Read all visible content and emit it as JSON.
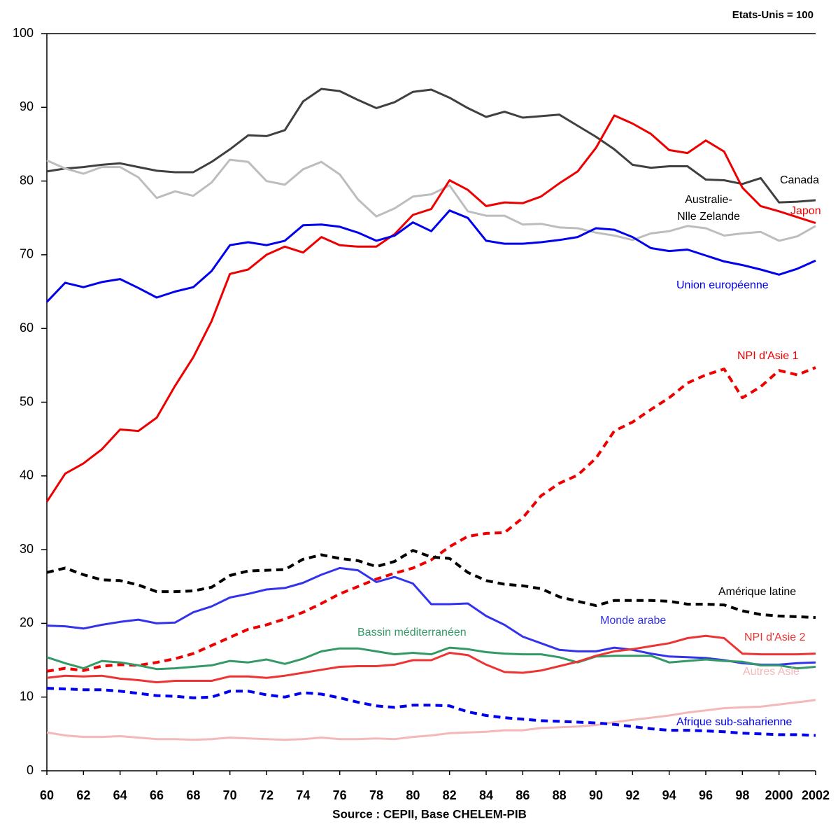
{
  "chart_data": {
    "type": "line",
    "title": "Etats-Unis = 100",
    "source": "Source : CEPII, Base CHELEM-PIB",
    "x": [
      1960,
      1961,
      1962,
      1963,
      1964,
      1965,
      1966,
      1967,
      1968,
      1969,
      1970,
      1971,
      1972,
      1973,
      1974,
      1975,
      1976,
      1977,
      1978,
      1979,
      1980,
      1981,
      1982,
      1983,
      1984,
      1985,
      1986,
      1987,
      1988,
      1989,
      1990,
      1991,
      1992,
      1993,
      1994,
      1995,
      1996,
      1997,
      1998,
      1999,
      2000,
      2001,
      2002
    ],
    "xlim": [
      1960,
      2002
    ],
    "xticks": [
      {
        "value": 1960,
        "label": "60"
      },
      {
        "value": 1962,
        "label": "62"
      },
      {
        "value": 1964,
        "label": "64"
      },
      {
        "value": 1966,
        "label": "66"
      },
      {
        "value": 1968,
        "label": "68"
      },
      {
        "value": 1970,
        "label": "70"
      },
      {
        "value": 1972,
        "label": "72"
      },
      {
        "value": 1974,
        "label": "74"
      },
      {
        "value": 1976,
        "label": "76"
      },
      {
        "value": 1978,
        "label": "78"
      },
      {
        "value": 1980,
        "label": "80"
      },
      {
        "value": 1982,
        "label": "82"
      },
      {
        "value": 1984,
        "label": "84"
      },
      {
        "value": 1986,
        "label": "86"
      },
      {
        "value": 1988,
        "label": "88"
      },
      {
        "value": 1990,
        "label": "90"
      },
      {
        "value": 1992,
        "label": "92"
      },
      {
        "value": 1994,
        "label": "94"
      },
      {
        "value": 1996,
        "label": "96"
      },
      {
        "value": 1998,
        "label": "98"
      },
      2000,
      2002
    ],
    "ylim": [
      0,
      100
    ],
    "yticks": [
      0,
      10,
      20,
      30,
      40,
      50,
      60,
      70,
      80,
      90,
      100
    ],
    "series": [
      {
        "name": "Canada",
        "color": "#404040",
        "style": "solid",
        "values": [
          81.3,
          81.7,
          81.9,
          82.2,
          82.4,
          81.9,
          81.4,
          81.2,
          81.2,
          82.6,
          84.3,
          86.2,
          86.1,
          86.9,
          90.8,
          92.5,
          92.2,
          91,
          89.9,
          90.7,
          92.1,
          92.4,
          91.3,
          89.9,
          88.7,
          89.4,
          88.6,
          88.8,
          89,
          87.5,
          86,
          84.3,
          82.2,
          81.8,
          82,
          82,
          80.2,
          80.1,
          79.6,
          80.4,
          77.1,
          77.2,
          77.4
        ]
      },
      {
        "name": "Australie-\nNlle Zelande",
        "color": "#bdbdbd",
        "style": "solid",
        "values": [
          82.8,
          81.7,
          81,
          81.9,
          81.9,
          80.5,
          77.7,
          78.6,
          78,
          79.8,
          82.9,
          82.6,
          80,
          79.5,
          81.6,
          82.6,
          80.9,
          77.5,
          75.2,
          76.3,
          77.9,
          78.2,
          79.4,
          75.9,
          75.3,
          75.3,
          74.1,
          74.2,
          73.7,
          73.6,
          73,
          72.6,
          72,
          72.9,
          73.2,
          73.9,
          73.6,
          72.6,
          72.9,
          73.1,
          71.9,
          72.5,
          73.9
        ]
      },
      {
        "name": "Japon",
        "color": "#ee0000",
        "style": "solid",
        "values": [
          36.5,
          40.3,
          41.7,
          43.6,
          46.3,
          46.1,
          47.9,
          52.2,
          56.1,
          61,
          67.4,
          68,
          70,
          71.1,
          70.3,
          72.4,
          71.3,
          71.1,
          71.1,
          72.8,
          75.4,
          76.2,
          80.1,
          78.8,
          76.6,
          77.1,
          77,
          77.9,
          79.7,
          81.3,
          84.5,
          88.9,
          87.8,
          86.4,
          84.2,
          83.8,
          85.5,
          84,
          79.1,
          76.6,
          75.9,
          75.1,
          74.3
        ]
      },
      {
        "name": "Union européenne",
        "color": "#0000ee",
        "style": "solid",
        "values": [
          63.6,
          66.2,
          65.6,
          66.3,
          66.7,
          65.5,
          64.2,
          65,
          65.6,
          67.8,
          71.3,
          71.7,
          71.3,
          71.9,
          74,
          74.1,
          73.8,
          73,
          71.9,
          72.6,
          74.4,
          73.2,
          76,
          75,
          71.9,
          71.5,
          71.5,
          71.7,
          72,
          72.4,
          73.6,
          73.4,
          72.4,
          70.9,
          70.5,
          70.7,
          69.9,
          69.1,
          68.6,
          68,
          67.3,
          68.1,
          69.2
        ]
      },
      {
        "name": "NPI d'Asie 1",
        "color": "#ee0000",
        "style": "dashed",
        "values": [
          13.5,
          13.9,
          13.6,
          14.2,
          14.4,
          14.3,
          14.7,
          15.2,
          15.9,
          17,
          18.1,
          19.2,
          19.8,
          20.6,
          21.5,
          22.7,
          24,
          25,
          26,
          26.8,
          27.5,
          28.6,
          30.4,
          31.8,
          32.2,
          32.3,
          34.3,
          37.3,
          39,
          40.1,
          42.4,
          46.1,
          47.3,
          49,
          50.6,
          52.6,
          53.7,
          54.5,
          50.6,
          52.1,
          54.3,
          53.7,
          54.7
        ]
      },
      {
        "name": "Amérique latine",
        "color": "#000000",
        "style": "dashed",
        "values": [
          26.9,
          27.5,
          26.6,
          25.9,
          25.8,
          25.2,
          24.3,
          24.3,
          24.4,
          24.9,
          26.5,
          27.1,
          27.2,
          27.3,
          28.7,
          29.3,
          28.8,
          28.5,
          27.7,
          28.4,
          29.9,
          29,
          28.8,
          26.9,
          25.8,
          25.3,
          25.1,
          24.7,
          23.6,
          23,
          22.4,
          23.1,
          23.1,
          23.1,
          23,
          22.6,
          22.6,
          22.5,
          21.7,
          21.2,
          21,
          20.9,
          20.8
        ]
      },
      {
        "name": "Monde arabe",
        "color": "#3333ee",
        "style": "solid",
        "values": [
          19.7,
          19.6,
          19.3,
          19.8,
          20.2,
          20.5,
          20,
          20.1,
          21.5,
          22.3,
          23.5,
          24,
          24.6,
          24.8,
          25.5,
          26.6,
          27.5,
          27.2,
          25.6,
          26.3,
          25.4,
          22.6,
          22.6,
          22.7,
          21,
          19.8,
          18.2,
          17.3,
          16.4,
          16.2,
          16.2,
          16.7,
          16.4,
          15.9,
          15.5,
          15.4,
          15.3,
          15,
          14.6,
          14.4,
          14.4,
          14.6,
          14.7
        ]
      },
      {
        "name": "Bassin méditerranéen",
        "color": "#339966",
        "style": "solid",
        "values": [
          15.4,
          14.6,
          13.9,
          14.9,
          14.7,
          14.3,
          13.8,
          13.9,
          14.1,
          14.3,
          14.9,
          14.7,
          15.1,
          14.5,
          15.2,
          16.2,
          16.6,
          16.6,
          16.2,
          15.8,
          16,
          15.8,
          16.7,
          16.5,
          16.1,
          15.9,
          15.8,
          15.8,
          15.4,
          14.7,
          15.5,
          15.6,
          15.6,
          15.6,
          14.7,
          14.9,
          15.1,
          14.9,
          14.8,
          14.3,
          14.3,
          13.9,
          14.1
        ]
      },
      {
        "name": "NPI d'Asie 2",
        "color": "#ee3333",
        "style": "solid",
        "values": [
          12.6,
          12.9,
          12.8,
          12.9,
          12.5,
          12.3,
          12,
          12.2,
          12.2,
          12.2,
          12.8,
          12.8,
          12.6,
          12.9,
          13.3,
          13.7,
          14.1,
          14.2,
          14.2,
          14.4,
          15,
          15,
          16,
          15.7,
          14.4,
          13.4,
          13.3,
          13.6,
          14.2,
          14.8,
          15.6,
          16.2,
          16.5,
          16.9,
          17.3,
          18,
          18.3,
          18,
          15.9,
          15.8,
          15.8,
          15.8,
          15.9
        ]
      },
      {
        "name": "Autres Asie",
        "color": "#f4b8b8",
        "style": "solid",
        "values": [
          5.2,
          4.8,
          4.6,
          4.6,
          4.7,
          4.5,
          4.3,
          4.3,
          4.2,
          4.3,
          4.5,
          4.4,
          4.3,
          4.2,
          4.3,
          4.5,
          4.3,
          4.3,
          4.4,
          4.3,
          4.6,
          4.8,
          5.1,
          5.2,
          5.3,
          5.5,
          5.5,
          5.8,
          5.9,
          6,
          6.2,
          6.6,
          6.9,
          7.2,
          7.5,
          7.9,
          8.2,
          8.5,
          8.6,
          8.7,
          9,
          9.3,
          9.6
        ]
      },
      {
        "name": "Afrique sub-saharienne",
        "color": "#0000ee",
        "style": "dashed",
        "values": [
          11.2,
          11.1,
          11,
          11,
          10.8,
          10.5,
          10.2,
          10.1,
          9.9,
          10,
          10.8,
          10.8,
          10.3,
          10,
          10.6,
          10.4,
          9.9,
          9.3,
          8.8,
          8.6,
          8.9,
          8.9,
          8.8,
          8,
          7.5,
          7.2,
          7,
          6.8,
          6.7,
          6.6,
          6.5,
          6.3,
          6,
          5.7,
          5.5,
          5.5,
          5.4,
          5.3,
          5.1,
          5,
          4.9,
          4.9,
          4.8
        ]
      }
    ]
  }
}
